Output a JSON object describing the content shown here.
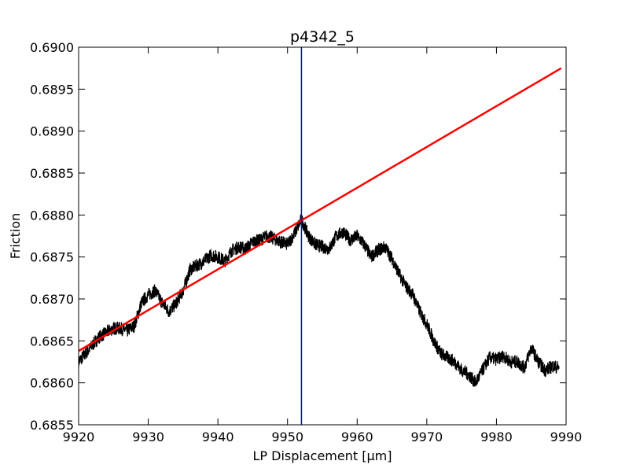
{
  "chart_data": {
    "type": "line",
    "title": "p4342_5",
    "xlabel": "LP Displacement [μm]",
    "ylabel": "Friction",
    "xlim": [
      9920,
      9990
    ],
    "ylim": [
      0.6855,
      0.69
    ],
    "grid": false,
    "x_ticks": [
      "9920",
      "9930",
      "9940",
      "9950",
      "9960",
      "9970",
      "9980",
      "9990"
    ],
    "y_ticks": [
      "0.6855",
      "0.6860",
      "0.6865",
      "0.6870",
      "0.6875",
      "0.6880",
      "0.6885",
      "0.6890",
      "0.6895",
      "0.6900"
    ],
    "series": [
      {
        "color": "#000000",
        "x": [
          9920,
          9921,
          9922,
          9923,
          9924,
          9925,
          9926,
          9927,
          9928,
          9929,
          9930,
          9931,
          9932,
          9933,
          9934,
          9935,
          9936,
          9937,
          9938,
          9939,
          9940,
          9941,
          9942,
          9943,
          9944,
          9945,
          9946,
          9947,
          9948,
          9949,
          9950,
          9951,
          9952,
          9953,
          9954,
          9955,
          9956,
          9957,
          9958,
          9959,
          9960,
          9961,
          9962,
          9963,
          9964,
          9965,
          9966,
          9967,
          9968,
          9969,
          9970,
          9971,
          9972,
          9973,
          9974,
          9975,
          9976,
          9977,
          9978,
          9979,
          9980,
          9981,
          9982,
          9983,
          9984,
          9985,
          9986,
          9987,
          9988,
          9989
        ],
        "y": [
          0.68625,
          0.68635,
          0.68645,
          0.68655,
          0.6866,
          0.68665,
          0.68665,
          0.68662,
          0.68668,
          0.68695,
          0.68705,
          0.6871,
          0.68695,
          0.68685,
          0.68695,
          0.6871,
          0.68735,
          0.6874,
          0.68745,
          0.68752,
          0.6875,
          0.68745,
          0.68758,
          0.68762,
          0.6876,
          0.68768,
          0.6877,
          0.68775,
          0.68772,
          0.68768,
          0.68765,
          0.68778,
          0.68795,
          0.68775,
          0.68765,
          0.68762,
          0.6876,
          0.68775,
          0.6878,
          0.6877,
          0.68775,
          0.68765,
          0.6875,
          0.68758,
          0.68762,
          0.68748,
          0.6873,
          0.68715,
          0.68705,
          0.68685,
          0.6867,
          0.6865,
          0.68635,
          0.6863,
          0.68625,
          0.68615,
          0.6861,
          0.686,
          0.68615,
          0.6863,
          0.68628,
          0.68632,
          0.68625,
          0.68625,
          0.68618,
          0.68642,
          0.68625,
          0.68615,
          0.6862,
          0.68618
        ],
        "noise": 8e-05
      },
      {
        "color": "#ff0000",
        "x": [
          9920,
          9989.3
        ],
        "y": [
          0.68638,
          0.68975
        ]
      }
    ],
    "vline": {
      "x": 9952,
      "color": "#0000ff"
    }
  }
}
